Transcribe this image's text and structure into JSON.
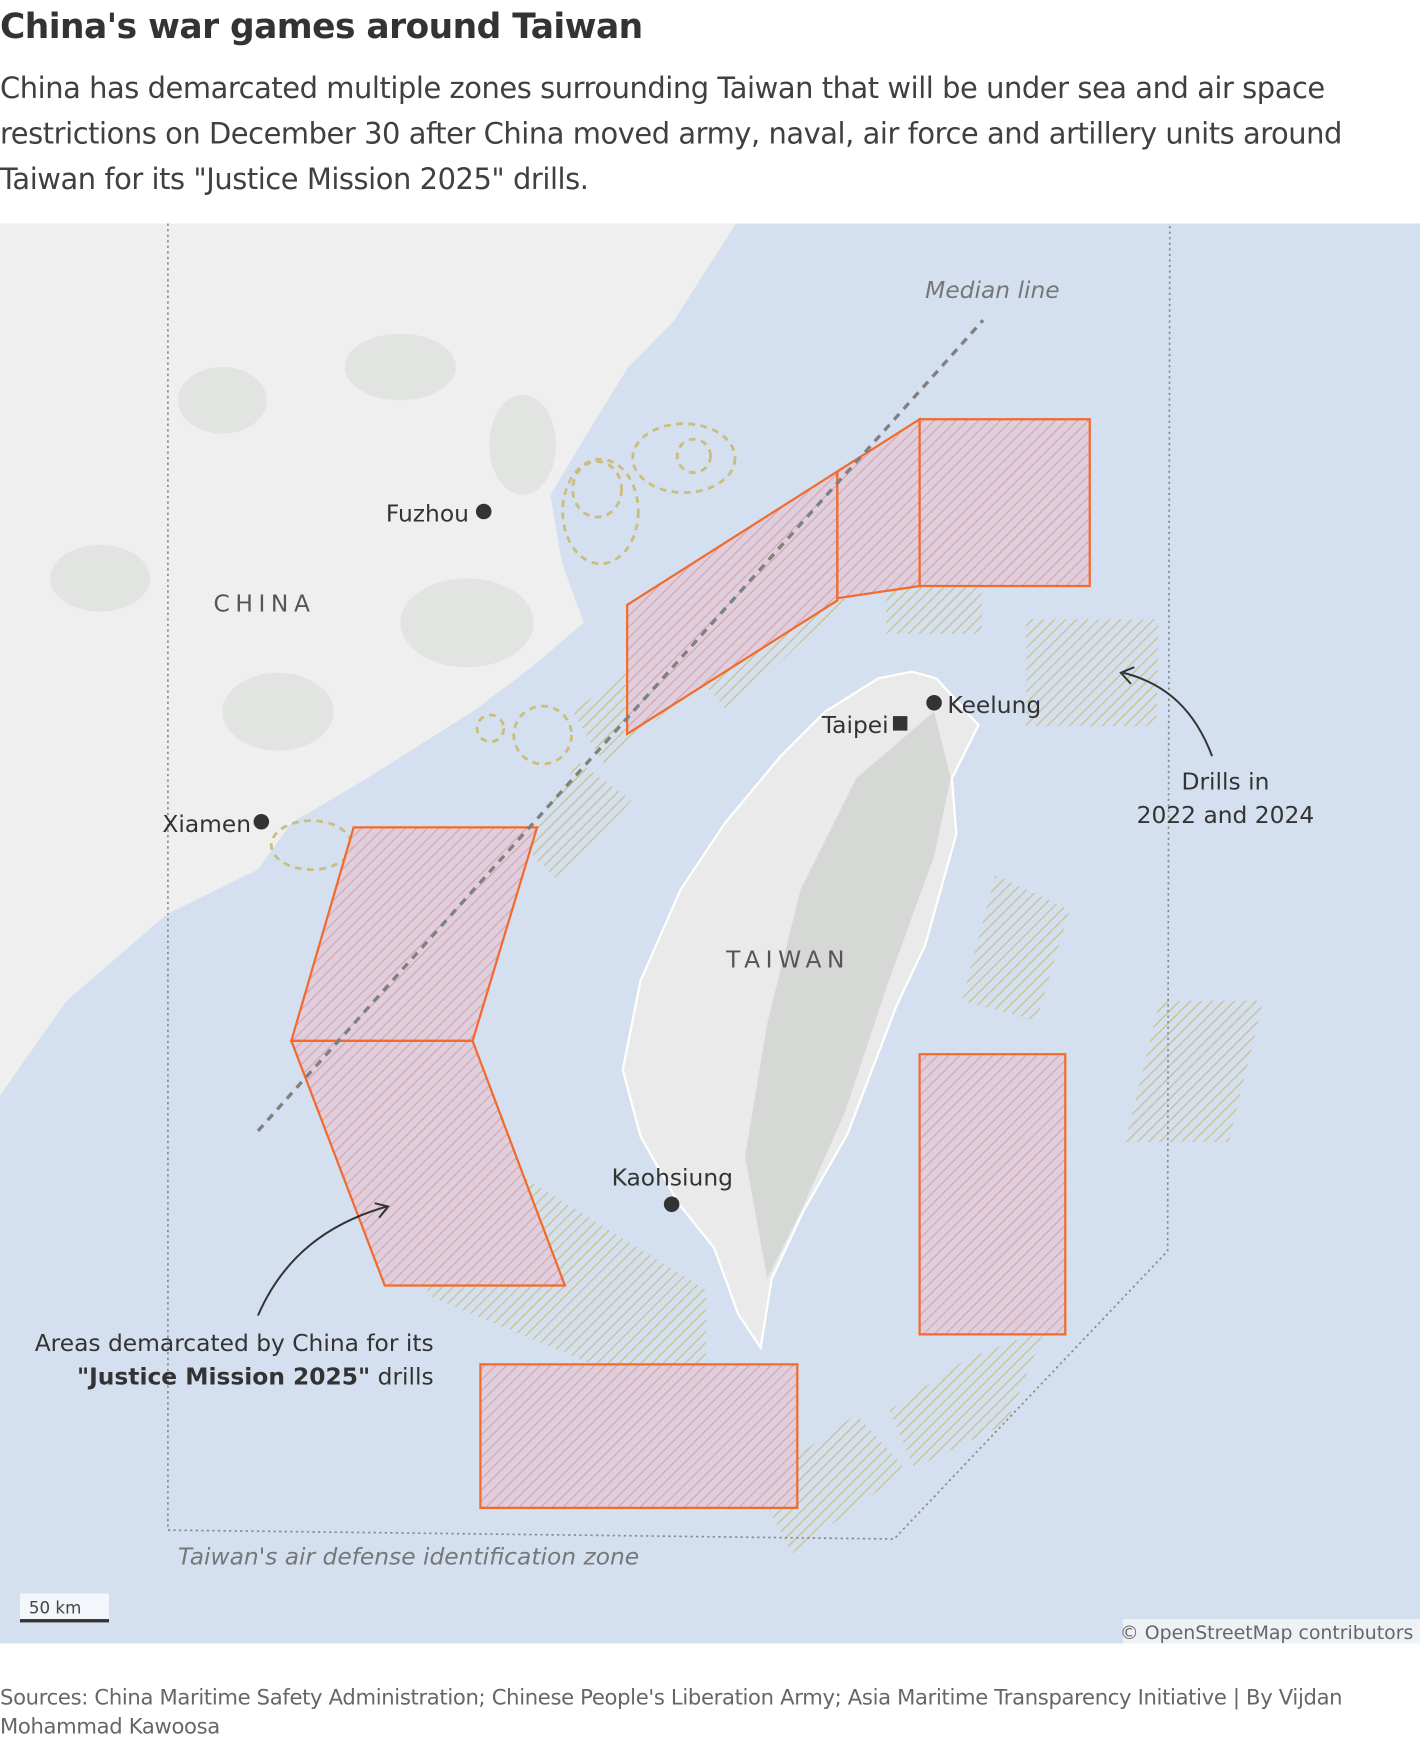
{
  "title": "China's war games around Taiwan",
  "subtitle": "China has demarcated multiple zones surrounding Taiwan that will be under sea and air space restrictions on December 30 after China moved army, naval, air force and artillery units around Taiwan for its \"Justice Mission 2025\" drills.",
  "map": {
    "labels": {
      "china": "CHINA",
      "taiwan": "TAIWAN",
      "fuzhou": "Fuzhou",
      "xiamen": "Xiamen",
      "taipei": "Taipei",
      "keelung": "Keelung",
      "kaohsiung": "Kaohsiung",
      "median_line": "Median line",
      "adiz": "Taiwan's air defense identification zone"
    },
    "annotations": {
      "past_drills_line1": "Drills in",
      "past_drills_line2": "2022 and 2024",
      "new_zones_line1": "Areas demarcated by China for its",
      "new_zones_bold": "\"Justice Mission 2025\"",
      "new_zones_rest": " drills"
    },
    "scale_bar": "50 km",
    "attribution": "© OpenStreetMap contributors",
    "colors": {
      "sea": "#d4e0ef",
      "land": "#efefef",
      "new_zone_outline": "#f26a2c",
      "new_zone_fill": "#e3b8c8",
      "past_drill_hatch": "#c8b66a"
    }
  },
  "sources": "Sources: China Maritime Safety Administration; Chinese People's Liberation Army; Asia Maritime Transparency Initiative | By Vijdan Mohammad Kawoosa"
}
